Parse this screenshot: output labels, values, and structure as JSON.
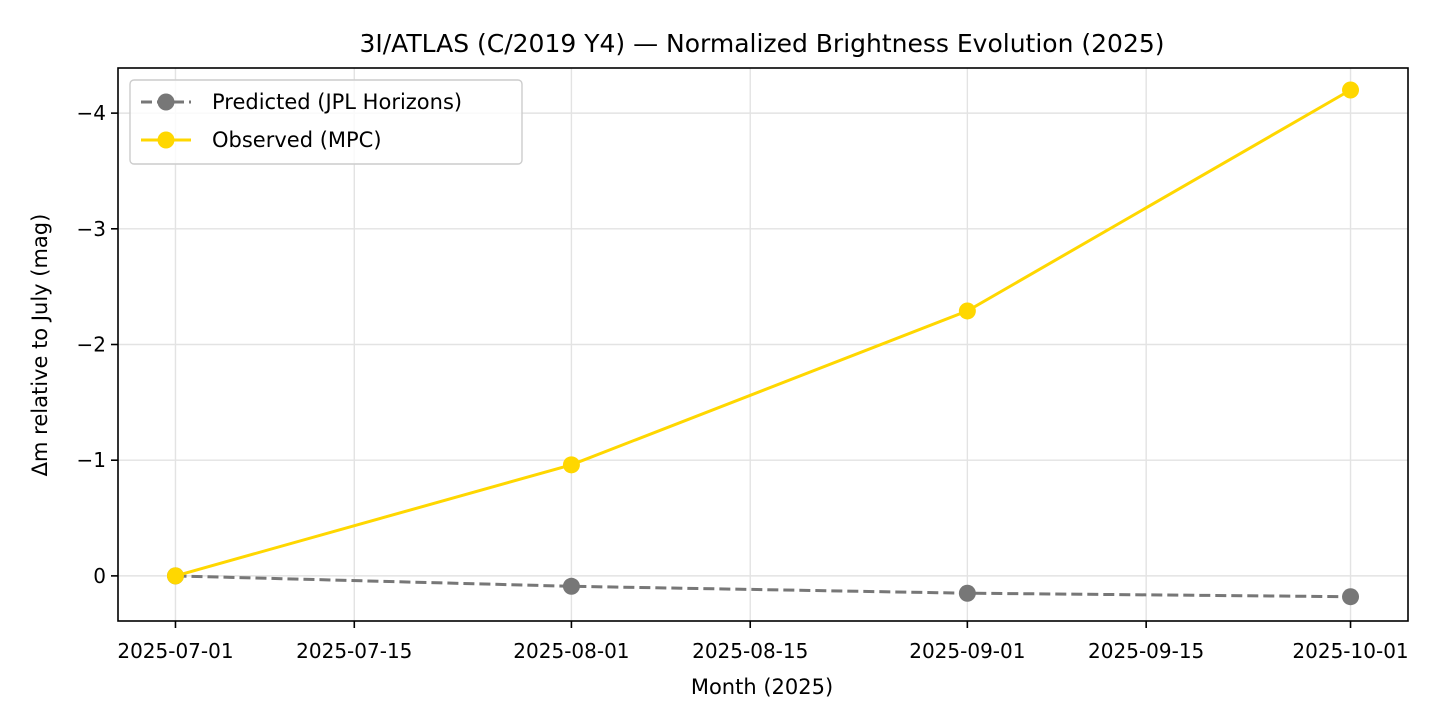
{
  "chart_data": {
    "type": "line",
    "title": "3I/ATLAS (C/2019 Y4) — Normalized Brightness Evolution (2025)",
    "xlabel": "Month (2025)",
    "ylabel": "Δm relative to July (mag)",
    "x_ticks": [
      "2025-07-01",
      "2025-07-15",
      "2025-08-01",
      "2025-08-15",
      "2025-09-01",
      "2025-09-15",
      "2025-10-01"
    ],
    "y_ticks": [
      0,
      -1,
      -2,
      -3,
      -4
    ],
    "y_tick_labels": [
      "0",
      "−1",
      "−2",
      "−3",
      "−4"
    ],
    "ylim": [
      0.39,
      -4.39
    ],
    "y_inverted": true,
    "xlim": [
      "2025-06-26.5",
      "2025-10-05.5"
    ],
    "grid": true,
    "legend_position": "top-left",
    "series": [
      {
        "name": "Predicted (JPL Horizons)",
        "color": "#777777",
        "line_style": "dashed",
        "marker": "circle",
        "x": [
          "2025-07-01",
          "2025-08-01",
          "2025-09-01",
          "2025-10-01"
        ],
        "values": [
          0,
          0.09,
          0.15,
          0.18
        ]
      },
      {
        "name": "Observed (MPC)",
        "color": "#ffd700",
        "line_style": "solid",
        "marker": "circle",
        "x": [
          "2025-07-01",
          "2025-08-01",
          "2025-09-01",
          "2025-10-01"
        ],
        "values": [
          0,
          -0.96,
          -2.29,
          -4.2
        ]
      }
    ]
  }
}
